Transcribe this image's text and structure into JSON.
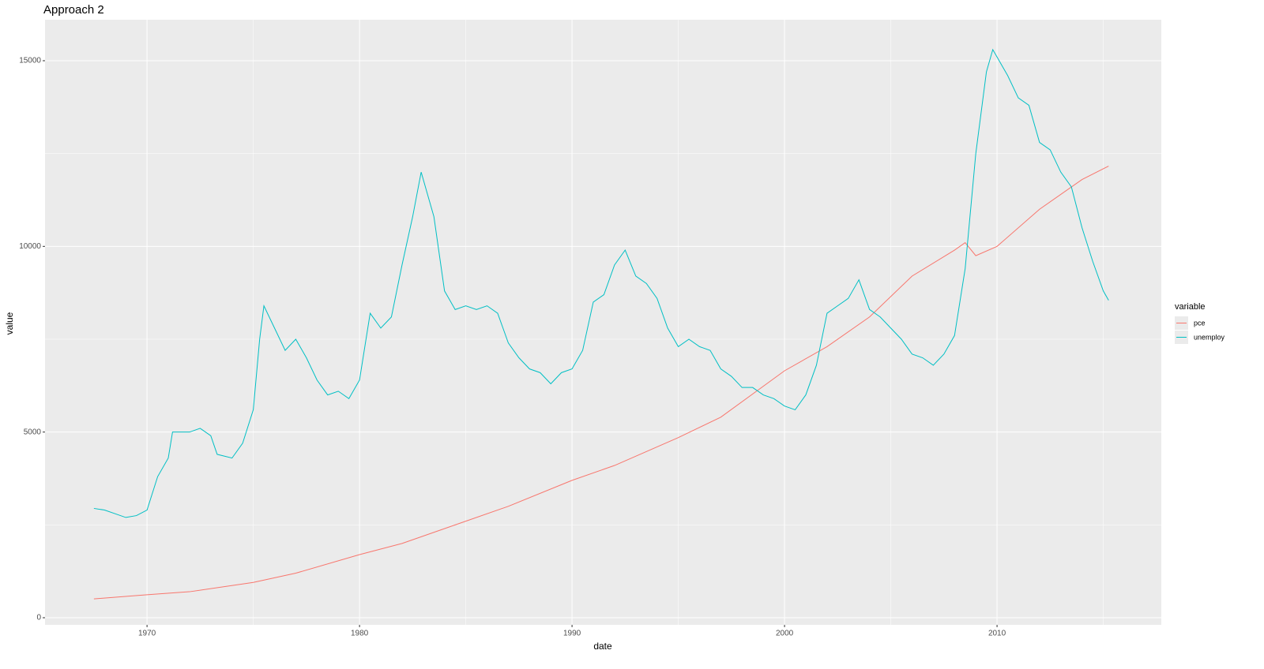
{
  "chart_data": {
    "type": "line",
    "title": "Approach 2",
    "x_label": "date",
    "y_label": "value",
    "legend_title": "variable",
    "legend_position": "right",
    "grid": true,
    "background": "#ebebeb",
    "xlim": [
      1965.2,
      2017.73
    ],
    "ylim": [
      -191,
      16104
    ],
    "xticks": [
      1970,
      1980,
      1990,
      2000,
      2010
    ],
    "yticks": [
      0,
      5000,
      10000,
      15000
    ],
    "xminor": [
      1965,
      1975,
      1985,
      1995,
      2005,
      2015
    ],
    "yminor": [
      2500,
      7500,
      12500
    ],
    "series": [
      {
        "name": "pce",
        "color": "#F8766D",
        "x": [
          1967.5,
          1970,
          1972,
          1975,
          1977,
          1980,
          1982,
          1985,
          1987,
          1990,
          1992,
          1995,
          1997,
          2000,
          2002,
          2004,
          2006,
          2008,
          2008.5,
          2009,
          2010,
          2012,
          2014,
          2015.25
        ],
        "values": [
          507,
          620,
          700,
          950,
          1200,
          1700,
          2000,
          2600,
          3000,
          3700,
          4100,
          4850,
          5400,
          6650,
          7300,
          8100,
          9200,
          9900,
          10100,
          9750,
          10000,
          11000,
          11800,
          12162
        ]
      },
      {
        "name": "unemploy",
        "color": "#00BFC4",
        "x": [
          1967.5,
          1968,
          1968.5,
          1969,
          1969.5,
          1970,
          1970.5,
          1971,
          1971.2,
          1972,
          1972.5,
          1973,
          1973.3,
          1974,
          1974.5,
          1975,
          1975.3,
          1975.5,
          1976,
          1976.5,
          1977,
          1977.5,
          1978,
          1978.5,
          1979,
          1979.5,
          1980,
          1980.5,
          1981,
          1981.5,
          1982,
          1982.5,
          1982.9,
          1983.5,
          1984,
          1984.5,
          1985,
          1985.5,
          1986,
          1986.5,
          1987,
          1987.5,
          1988,
          1988.5,
          1989,
          1989.5,
          1990,
          1990.5,
          1991,
          1991.5,
          1992,
          1992.5,
          1993,
          1993.5,
          1994,
          1994.5,
          1995,
          1995.5,
          1996,
          1996.5,
          1997,
          1997.5,
          1998,
          1998.5,
          1999,
          1999.5,
          2000,
          2000.5,
          2001,
          2001.5,
          2002,
          2002.5,
          2003,
          2003.5,
          2004,
          2004.5,
          2005,
          2005.5,
          2006,
          2006.5,
          2007,
          2007.5,
          2008,
          2008.5,
          2009,
          2009.5,
          2009.8,
          2010,
          2010.5,
          2011,
          2011.5,
          2012,
          2012.5,
          2013,
          2013.5,
          2014,
          2014.5,
          2015,
          2015.25
        ],
        "values": [
          2944,
          2900,
          2800,
          2700,
          2750,
          2900,
          3800,
          4300,
          5000,
          5000,
          5100,
          4900,
          4400,
          4300,
          4700,
          5600,
          7500,
          8400,
          7800,
          7200,
          7500,
          7000,
          6400,
          6000,
          6100,
          5900,
          6400,
          8200,
          7800,
          8100,
          9500,
          10800,
          12000,
          10800,
          8800,
          8300,
          8400,
          8300,
          8400,
          8200,
          7400,
          7000,
          6700,
          6600,
          6300,
          6600,
          6700,
          7200,
          8500,
          8700,
          9500,
          9900,
          9200,
          9000,
          8600,
          7800,
          7300,
          7500,
          7300,
          7200,
          6700,
          6500,
          6200,
          6200,
          6000,
          5900,
          5700,
          5600,
          6000,
          6800,
          8200,
          8400,
          8600,
          9100,
          8300,
          8100,
          7800,
          7500,
          7100,
          7000,
          6800,
          7100,
          7600,
          9400,
          12500,
          14700,
          15300,
          15100,
          14600,
          14000,
          13800,
          12800,
          12600,
          12000,
          11600,
          10500,
          9600,
          8800,
          8549
        ]
      }
    ]
  }
}
